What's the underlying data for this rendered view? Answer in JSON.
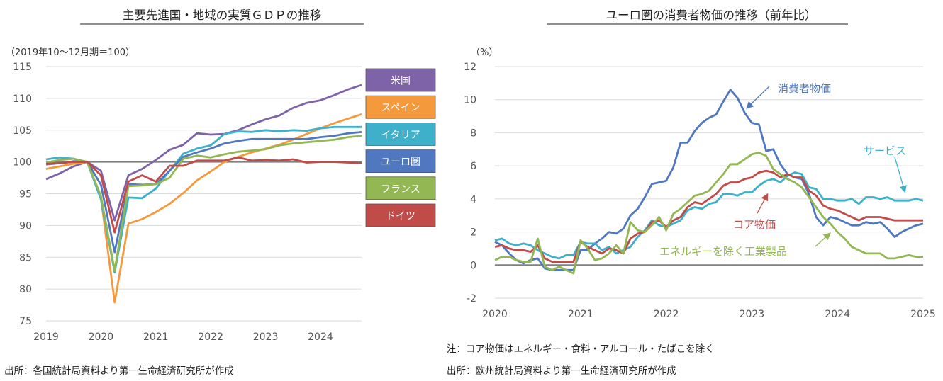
{
  "chart_data": [
    {
      "type": "line",
      "title": "主要先進国・地域の実質ＧＤＰの推移",
      "unit_label": "（2019年10～12月期＝100）",
      "source": "出所：各国統計局資料より第一生命経済研究所が作成",
      "xlim": [
        2019,
        2024.75
      ],
      "ylim": [
        75,
        115
      ],
      "x_ticks": [
        2019,
        2020,
        2021,
        2022,
        2023,
        2024
      ],
      "x_tick_labels": [
        "2019",
        "2020",
        "2021",
        "2022",
        "2023",
        "2024"
      ],
      "y_ticks": [
        75,
        80,
        85,
        90,
        95,
        100,
        105,
        110,
        115
      ],
      "reference_line": 100,
      "legend_position": "right",
      "series": [
        {
          "name": "米国",
          "color": "#7f63a8",
          "x": [
            2019.0,
            2019.25,
            2019.5,
            2019.75,
            2020.0,
            2020.25,
            2020.5,
            2020.75,
            2021.0,
            2021.25,
            2021.5,
            2021.75,
            2022.0,
            2022.25,
            2022.5,
            2022.75,
            2023.0,
            2023.25,
            2023.5,
            2023.75,
            2024.0,
            2024.25,
            2024.5,
            2024.75
          ],
          "y": [
            97.3,
            98.2,
            99.3,
            100.0,
            98.6,
            90.8,
            97.9,
            98.9,
            100.3,
            101.9,
            102.7,
            104.5,
            104.3,
            104.4,
            105.0,
            105.9,
            106.7,
            107.3,
            108.5,
            109.3,
            109.7,
            110.5,
            111.4,
            112.1
          ]
        },
        {
          "name": "スペイン",
          "color": "#f59a3c",
          "x": [
            2019.0,
            2019.25,
            2019.5,
            2019.75,
            2020.0,
            2020.25,
            2020.5,
            2020.75,
            2021.0,
            2021.25,
            2021.5,
            2021.75,
            2022.0,
            2022.25,
            2022.5,
            2022.75,
            2023.0,
            2023.25,
            2023.5,
            2023.75,
            2024.0,
            2024.25,
            2024.5,
            2024.75
          ],
          "y": [
            98.9,
            99.3,
            99.7,
            100.0,
            94.3,
            77.9,
            90.3,
            91.0,
            92.1,
            93.4,
            95.1,
            97.1,
            98.5,
            100.0,
            100.8,
            101.5,
            102.1,
            102.7,
            103.5,
            104.4,
            105.3,
            106.1,
            106.8,
            107.5
          ]
        },
        {
          "name": "イタリア",
          "color": "#3fb0c9",
          "x": [
            2019.0,
            2019.25,
            2019.5,
            2019.75,
            2020.0,
            2020.25,
            2020.5,
            2020.75,
            2021.0,
            2021.25,
            2021.5,
            2021.75,
            2022.0,
            2022.25,
            2022.5,
            2022.75,
            2023.0,
            2023.25,
            2023.5,
            2023.75,
            2024.0,
            2024.25,
            2024.5,
            2024.75
          ],
          "y": [
            100.4,
            100.7,
            100.5,
            100.0,
            94.1,
            82.6,
            94.4,
            94.3,
            95.8,
            98.6,
            101.3,
            102.1,
            102.6,
            104.4,
            104.8,
            104.7,
            105.0,
            104.8,
            105.0,
            104.9,
            105.3,
            105.5,
            105.5,
            105.5
          ]
        },
        {
          "name": "ユーロ圏",
          "color": "#4f78c0",
          "x": [
            2019.0,
            2019.25,
            2019.5,
            2019.75,
            2020.0,
            2020.25,
            2020.5,
            2020.75,
            2021.0,
            2021.25,
            2021.5,
            2021.75,
            2022.0,
            2022.25,
            2022.5,
            2022.75,
            2023.0,
            2023.25,
            2023.5,
            2023.75,
            2024.0,
            2024.25,
            2024.5,
            2024.75
          ],
          "y": [
            99.6,
            99.8,
            100.1,
            100.0,
            96.4,
            85.8,
            96.5,
            96.4,
            96.5,
            98.6,
            100.8,
            101.5,
            102.1,
            102.9,
            103.3,
            103.6,
            103.6,
            103.6,
            103.6,
            103.6,
            103.9,
            104.1,
            104.5,
            104.7
          ]
        },
        {
          "name": "フランス",
          "color": "#93b853",
          "x": [
            2019.0,
            2019.25,
            2019.5,
            2019.75,
            2020.0,
            2020.25,
            2020.5,
            2020.75,
            2021.0,
            2021.25,
            2021.5,
            2021.75,
            2022.0,
            2022.25,
            2022.5,
            2022.75,
            2023.0,
            2023.25,
            2023.5,
            2023.75,
            2024.0,
            2024.25,
            2024.5,
            2024.75
          ],
          "y": [
            99.9,
            100.3,
            100.5,
            100.0,
            94.6,
            82.9,
            96.2,
            96.3,
            96.5,
            97.5,
            100.5,
            101.0,
            100.7,
            101.2,
            101.6,
            101.8,
            102.0,
            102.6,
            102.9,
            103.1,
            103.3,
            103.5,
            103.9,
            104.1
          ]
        },
        {
          "name": "ドイツ",
          "color": "#c14b49",
          "x": [
            2019.0,
            2019.25,
            2019.5,
            2019.75,
            2020.0,
            2020.25,
            2020.5,
            2020.75,
            2021.0,
            2021.25,
            2021.5,
            2021.75,
            2022.0,
            2022.25,
            2022.5,
            2022.75,
            2023.0,
            2023.25,
            2023.5,
            2023.75,
            2024.0,
            2024.25,
            2024.5,
            2024.75
          ],
          "y": [
            99.7,
            99.8,
            100.0,
            100.0,
            97.9,
            88.9,
            96.9,
            97.9,
            96.9,
            99.4,
            99.4,
            100.2,
            100.2,
            100.2,
            100.7,
            100.2,
            100.3,
            100.2,
            100.4,
            99.9,
            100.0,
            100.0,
            99.9,
            99.8
          ]
        }
      ]
    },
    {
      "type": "line",
      "title": "ユーロ圏の消費者物価の推移（前年比）",
      "unit_label": "（%）",
      "note": "注：コア物価はエネルギー・食料・アルコール・たばこを除く",
      "source": "出所：欧州統計局資料より第一生命経済研究所が作成",
      "xlim": [
        2020,
        2025
      ],
      "ylim": [
        -2,
        12
      ],
      "x_ticks": [
        2020,
        2021,
        2022,
        2023,
        2024,
        2025
      ],
      "x_tick_labels": [
        "2020",
        "2021",
        "2022",
        "2023",
        "2024",
        "2025"
      ],
      "y_ticks": [
        -2,
        0,
        2,
        4,
        6,
        8,
        10,
        12
      ],
      "reference_line": 0,
      "series": [
        {
          "name": "消費者物価",
          "color": "#4f78c0",
          "x": [
            2020.0,
            2020.083,
            2020.167,
            2020.25,
            2020.333,
            2020.417,
            2020.5,
            2020.583,
            2020.667,
            2020.75,
            2020.833,
            2020.917,
            2021.0,
            2021.083,
            2021.167,
            2021.25,
            2021.333,
            2021.417,
            2021.5,
            2021.583,
            2021.667,
            2021.75,
            2021.833,
            2021.917,
            2022.0,
            2022.083,
            2022.167,
            2022.25,
            2022.333,
            2022.417,
            2022.5,
            2022.583,
            2022.667,
            2022.75,
            2022.833,
            2022.917,
            2023.0,
            2023.083,
            2023.167,
            2023.25,
            2023.333,
            2023.417,
            2023.5,
            2023.583,
            2023.667,
            2023.75,
            2023.833,
            2023.917,
            2024.0,
            2024.083,
            2024.167,
            2024.25,
            2024.333,
            2024.417,
            2024.5,
            2024.583,
            2024.667,
            2024.75,
            2024.833,
            2024.917,
            2025.0
          ],
          "y": [
            1.4,
            1.2,
            0.7,
            0.3,
            0.1,
            0.3,
            0.4,
            -0.2,
            -0.3,
            -0.3,
            -0.3,
            -0.3,
            0.9,
            0.9,
            1.3,
            1.6,
            2.0,
            1.9,
            2.2,
            3.0,
            3.4,
            4.1,
            4.9,
            5.0,
            5.1,
            5.9,
            7.4,
            7.4,
            8.1,
            8.6,
            8.9,
            9.1,
            9.9,
            10.6,
            10.1,
            9.2,
            8.6,
            8.5,
            6.9,
            7.0,
            6.1,
            5.5,
            5.3,
            5.2,
            4.3,
            2.9,
            2.4,
            2.9,
            2.8,
            2.6,
            2.4,
            2.4,
            2.6,
            2.5,
            2.6,
            2.2,
            1.7,
            2.0,
            2.2,
            2.4,
            2.5
          ]
        },
        {
          "name": "サービス",
          "color": "#3fb0c9",
          "x": [
            2020.0,
            2020.083,
            2020.167,
            2020.25,
            2020.333,
            2020.417,
            2020.5,
            2020.583,
            2020.667,
            2020.75,
            2020.833,
            2020.917,
            2021.0,
            2021.083,
            2021.167,
            2021.25,
            2021.333,
            2021.417,
            2021.5,
            2021.583,
            2021.667,
            2021.75,
            2021.833,
            2021.917,
            2022.0,
            2022.083,
            2022.167,
            2022.25,
            2022.333,
            2022.417,
            2022.5,
            2022.583,
            2022.667,
            2022.75,
            2022.833,
            2022.917,
            2023.0,
            2023.083,
            2023.167,
            2023.25,
            2023.333,
            2023.417,
            2023.5,
            2023.583,
            2023.667,
            2023.75,
            2023.833,
            2023.917,
            2024.0,
            2024.083,
            2024.167,
            2024.25,
            2024.333,
            2024.417,
            2024.5,
            2024.583,
            2024.667,
            2024.75,
            2024.833,
            2024.917,
            2025.0
          ],
          "y": [
            1.5,
            1.6,
            1.3,
            1.2,
            1.3,
            1.2,
            0.9,
            0.7,
            0.5,
            0.4,
            0.6,
            0.6,
            1.4,
            1.3,
            1.3,
            0.9,
            1.1,
            0.7,
            0.9,
            1.1,
            1.7,
            2.1,
            2.7,
            2.4,
            2.3,
            2.5,
            2.7,
            3.3,
            3.5,
            3.4,
            3.7,
            3.8,
            4.3,
            4.3,
            4.2,
            4.4,
            4.4,
            4.8,
            5.1,
            5.2,
            5.0,
            5.4,
            5.6,
            5.5,
            4.7,
            4.6,
            4.0,
            4.0,
            3.9,
            3.9,
            4.0,
            3.7,
            4.1,
            4.1,
            4.0,
            4.1,
            3.9,
            3.9,
            3.9,
            4.0,
            3.9
          ]
        },
        {
          "name": "コア物価",
          "color": "#c14b49",
          "x": [
            2020.0,
            2020.083,
            2020.167,
            2020.25,
            2020.333,
            2020.417,
            2020.5,
            2020.583,
            2020.667,
            2020.75,
            2020.833,
            2020.917,
            2021.0,
            2021.083,
            2021.167,
            2021.25,
            2021.333,
            2021.417,
            2021.5,
            2021.583,
            2021.667,
            2021.75,
            2021.833,
            2021.917,
            2022.0,
            2022.083,
            2022.167,
            2022.25,
            2022.333,
            2022.417,
            2022.5,
            2022.583,
            2022.667,
            2022.75,
            2022.833,
            2022.917,
            2023.0,
            2023.083,
            2023.167,
            2023.25,
            2023.333,
            2023.417,
            2023.5,
            2023.583,
            2023.667,
            2023.75,
            2023.833,
            2023.917,
            2024.0,
            2024.083,
            2024.167,
            2024.25,
            2024.333,
            2024.417,
            2024.5,
            2024.583,
            2024.667,
            2024.75,
            2024.833,
            2024.917,
            2025.0
          ],
          "y": [
            1.1,
            1.2,
            1.0,
            0.9,
            0.9,
            0.8,
            1.2,
            0.4,
            0.2,
            0.2,
            0.2,
            0.2,
            1.4,
            1.1,
            0.9,
            0.7,
            1.0,
            0.9,
            0.7,
            1.6,
            1.9,
            2.0,
            2.6,
            2.7,
            2.3,
            2.7,
            2.9,
            3.5,
            3.8,
            3.7,
            4.0,
            4.3,
            4.8,
            5.0,
            5.0,
            5.2,
            5.3,
            5.6,
            5.7,
            5.6,
            5.3,
            5.5,
            5.3,
            5.3,
            4.5,
            4.2,
            3.6,
            3.4,
            3.3,
            3.1,
            2.9,
            2.7,
            2.9,
            2.9,
            2.9,
            2.8,
            2.7,
            2.7,
            2.7,
            2.7,
            2.7
          ]
        },
        {
          "name": "エネルギーを除く工業製品",
          "color": "#93b853",
          "x": [
            2020.0,
            2020.083,
            2020.167,
            2020.25,
            2020.333,
            2020.417,
            2020.5,
            2020.583,
            2020.667,
            2020.75,
            2020.833,
            2020.917,
            2021.0,
            2021.083,
            2021.167,
            2021.25,
            2021.333,
            2021.417,
            2021.5,
            2021.583,
            2021.667,
            2021.75,
            2021.833,
            2021.917,
            2022.0,
            2022.083,
            2022.167,
            2022.25,
            2022.333,
            2022.417,
            2022.5,
            2022.583,
            2022.667,
            2022.75,
            2022.833,
            2022.917,
            2023.0,
            2023.083,
            2023.167,
            2023.25,
            2023.333,
            2023.417,
            2023.5,
            2023.583,
            2023.667,
            2023.75,
            2023.833,
            2023.917,
            2024.0,
            2024.083,
            2024.167,
            2024.25,
            2024.333,
            2024.417,
            2024.5,
            2024.583,
            2024.667,
            2024.75,
            2024.833,
            2024.917,
            2025.0
          ],
          "y": [
            0.3,
            0.5,
            0.5,
            0.3,
            0.2,
            0.2,
            1.6,
            -0.1,
            -0.3,
            -0.1,
            -0.3,
            -0.5,
            1.5,
            1.0,
            0.3,
            0.4,
            0.7,
            1.2,
            0.7,
            2.6,
            2.1,
            2.0,
            2.4,
            2.9,
            2.1,
            3.1,
            3.4,
            3.8,
            4.2,
            4.3,
            4.5,
            5.0,
            5.5,
            6.1,
            6.1,
            6.4,
            6.7,
            6.8,
            6.6,
            5.8,
            5.5,
            5.2,
            5.0,
            4.7,
            4.1,
            3.5,
            2.9,
            2.5,
            2.0,
            1.6,
            1.1,
            0.9,
            0.7,
            0.7,
            0.7,
            0.4,
            0.4,
            0.5,
            0.6,
            0.5,
            0.5
          ]
        }
      ]
    }
  ]
}
